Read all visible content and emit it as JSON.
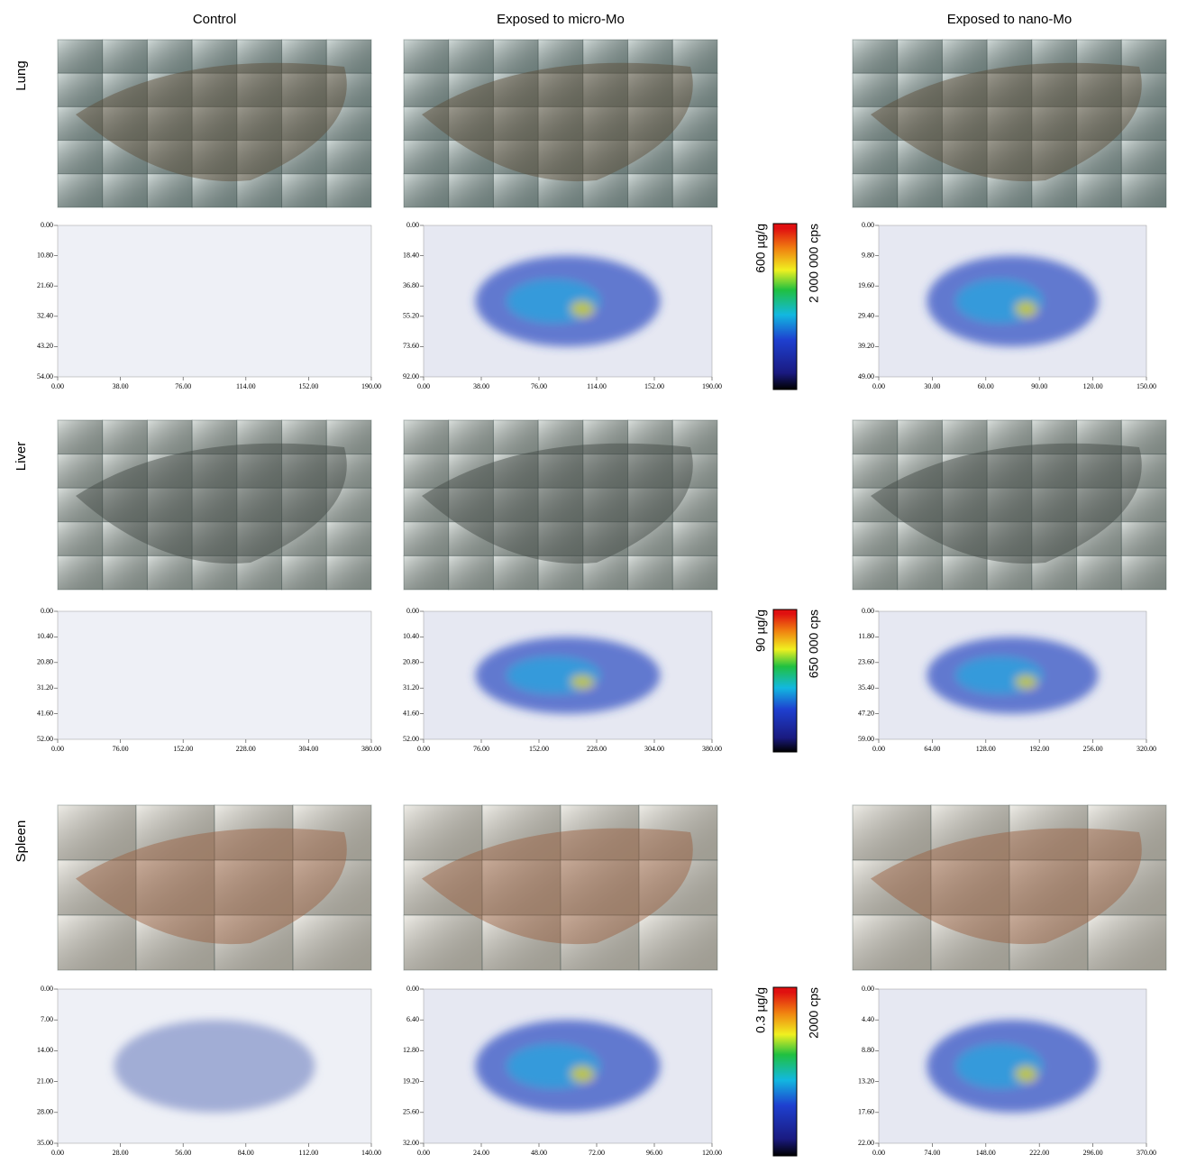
{
  "columns": [
    "Control",
    "Exposed to micro-Mo",
    "Exposed to nano-Mo"
  ],
  "rows": [
    {
      "label": "Lung",
      "scale": {
        "concentration": "600 µg/g",
        "counts": "2 000 000 cps"
      },
      "maps": [
        {
          "xticks": [
            {
              "value": 0,
              "label": "0.00"
            },
            {
              "value": 38,
              "label": "38.00"
            },
            {
              "value": 76,
              "label": "76.00"
            },
            {
              "value": 114,
              "label": "114.00"
            },
            {
              "value": 152,
              "label": "152.00"
            },
            {
              "value": 190,
              "label": "190.00"
            }
          ],
          "yticks": [
            {
              "value": 0,
              "label": "0.00"
            },
            {
              "value": 10.8,
              "label": "10.80"
            },
            {
              "value": 21.6,
              "label": "21.60"
            },
            {
              "value": 32.4,
              "label": "32.40"
            },
            {
              "value": 43.2,
              "label": "43.20"
            },
            {
              "value": 54,
              "label": "54.00"
            }
          ]
        },
        {
          "xticks": [
            {
              "value": 0,
              "label": "0.00"
            },
            {
              "value": 38,
              "label": "38.00"
            },
            {
              "value": 76,
              "label": "76.00"
            },
            {
              "value": 114,
              "label": "114.00"
            },
            {
              "value": 152,
              "label": "152.00"
            },
            {
              "value": 190,
              "label": "190.00"
            }
          ],
          "yticks": [
            {
              "value": 0,
              "label": "0.00"
            },
            {
              "value": 18.4,
              "label": "18.40"
            },
            {
              "value": 36.8,
              "label": "36.80"
            },
            {
              "value": 55.2,
              "label": "55.20"
            },
            {
              "value": 73.6,
              "label": "73.60"
            },
            {
              "value": 92,
              "label": "92.00"
            }
          ]
        },
        {
          "xticks": [
            {
              "value": 0,
              "label": "0.00"
            },
            {
              "value": 30,
              "label": "30.00"
            },
            {
              "value": 60,
              "label": "60.00"
            },
            {
              "value": 90,
              "label": "90.00"
            },
            {
              "value": 120,
              "label": "120.00"
            },
            {
              "value": 150,
              "label": "150.00"
            }
          ],
          "yticks": [
            {
              "value": 0,
              "label": "0.00"
            },
            {
              "value": 9.8,
              "label": "9.80"
            },
            {
              "value": 19.6,
              "label": "19.60"
            },
            {
              "value": 29.4,
              "label": "29.40"
            },
            {
              "value": 39.2,
              "label": "39.20"
            },
            {
              "value": 49,
              "label": "49.00"
            }
          ]
        }
      ]
    },
    {
      "label": "Liver",
      "scale": {
        "concentration": "90 µg/g",
        "counts": "650 000 cps"
      },
      "maps": [
        {
          "xticks": [
            {
              "value": 0,
              "label": "0.00"
            },
            {
              "value": 76,
              "label": "76.00"
            },
            {
              "value": 152,
              "label": "152.00"
            },
            {
              "value": 228,
              "label": "228.00"
            },
            {
              "value": 304,
              "label": "304.00"
            },
            {
              "value": 380,
              "label": "380.00"
            }
          ],
          "yticks": [
            {
              "value": 0,
              "label": "0.00"
            },
            {
              "value": 10.4,
              "label": "10.40"
            },
            {
              "value": 20.8,
              "label": "20.80"
            },
            {
              "value": 31.2,
              "label": "31.20"
            },
            {
              "value": 41.6,
              "label": "41.60"
            },
            {
              "value": 52,
              "label": "52.00"
            }
          ]
        },
        {
          "xticks": [
            {
              "value": 0,
              "label": "0.00"
            },
            {
              "value": 76,
              "label": "76.00"
            },
            {
              "value": 152,
              "label": "152.00"
            },
            {
              "value": 228,
              "label": "228.00"
            },
            {
              "value": 304,
              "label": "304.00"
            },
            {
              "value": 380,
              "label": "380.00"
            }
          ],
          "yticks": [
            {
              "value": 0,
              "label": "0.00"
            },
            {
              "value": 10.4,
              "label": "10.40"
            },
            {
              "value": 20.8,
              "label": "20.80"
            },
            {
              "value": 31.2,
              "label": "31.20"
            },
            {
              "value": 41.6,
              "label": "41.60"
            },
            {
              "value": 52,
              "label": "52.00"
            }
          ]
        },
        {
          "xticks": [
            {
              "value": 0,
              "label": "0.00"
            },
            {
              "value": 64,
              "label": "64.00"
            },
            {
              "value": 128,
              "label": "128.00"
            },
            {
              "value": 192,
              "label": "192.00"
            },
            {
              "value": 256,
              "label": "256.00"
            },
            {
              "value": 320,
              "label": "320.00"
            }
          ],
          "yticks": [
            {
              "value": 0,
              "label": "0.00"
            },
            {
              "value": 11.8,
              "label": "11.80"
            },
            {
              "value": 23.6,
              "label": "23.60"
            },
            {
              "value": 35.4,
              "label": "35.40"
            },
            {
              "value": 47.2,
              "label": "47.20"
            },
            {
              "value": 59,
              "label": "59.00"
            }
          ]
        }
      ]
    },
    {
      "label": "Spleen",
      "scale": {
        "concentration": "0.3 µg/g",
        "counts": "2000 cps"
      },
      "maps": [
        {
          "xticks": [
            {
              "value": 0,
              "label": "0.00"
            },
            {
              "value": 28,
              "label": "28.00"
            },
            {
              "value": 56,
              "label": "56.00"
            },
            {
              "value": 84,
              "label": "84.00"
            },
            {
              "value": 112,
              "label": "112.00"
            },
            {
              "value": 140,
              "label": "140.00"
            }
          ],
          "yticks": [
            {
              "value": 0,
              "label": "0.00"
            },
            {
              "value": 7,
              "label": "7.00"
            },
            {
              "value": 14,
              "label": "14.00"
            },
            {
              "value": 21,
              "label": "21.00"
            },
            {
              "value": 28,
              "label": "28.00"
            },
            {
              "value": 35,
              "label": "35.00"
            }
          ]
        },
        {
          "xticks": [
            {
              "value": 0,
              "label": "0.00"
            },
            {
              "value": 24,
              "label": "24.00"
            },
            {
              "value": 48,
              "label": "48.00"
            },
            {
              "value": 72,
              "label": "72.00"
            },
            {
              "value": 96,
              "label": "96.00"
            },
            {
              "value": 120,
              "label": "120.00"
            }
          ],
          "yticks": [
            {
              "value": 0,
              "label": "0.00"
            },
            {
              "value": 6.4,
              "label": "6.40"
            },
            {
              "value": 12.8,
              "label": "12.80"
            },
            {
              "value": 19.2,
              "label": "19.20"
            },
            {
              "value": 25.6,
              "label": "25.60"
            },
            {
              "value": 32,
              "label": "32.00"
            }
          ]
        },
        {
          "xticks": [
            {
              "value": 0,
              "label": "0.00"
            },
            {
              "value": 74,
              "label": "74.00"
            },
            {
              "value": 148,
              "label": "148.00"
            },
            {
              "value": 222,
              "label": "222.00"
            },
            {
              "value": 296,
              "label": "296.00"
            },
            {
              "value": 370,
              "label": "370.00"
            }
          ],
          "yticks": [
            {
              "value": 0,
              "label": "0.00"
            },
            {
              "value": 4.4,
              "label": "4.40"
            },
            {
              "value": 8.8,
              "label": "8.80"
            },
            {
              "value": 13.2,
              "label": "13.20"
            },
            {
              "value": 17.6,
              "label": "17.60"
            },
            {
              "value": 22,
              "label": "22.00"
            }
          ]
        }
      ]
    }
  ]
}
